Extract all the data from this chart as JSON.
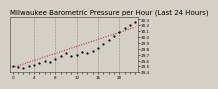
{
  "title": "Barometric Pressure per Hour (Last 24 Hours)",
  "subtitle": "Milwaukee",
  "hours": [
    0,
    1,
    2,
    3,
    4,
    5,
    6,
    7,
    8,
    9,
    10,
    11,
    12,
    13,
    14,
    15,
    16,
    17,
    18,
    19,
    20,
    21,
    22,
    23
  ],
  "pressure": [
    29.51,
    29.49,
    29.47,
    29.5,
    29.53,
    29.56,
    29.6,
    29.58,
    29.62,
    29.68,
    29.72,
    29.67,
    29.7,
    29.74,
    29.72,
    29.76,
    29.82,
    29.88,
    29.95,
    30.02,
    30.08,
    30.15,
    30.21,
    30.26
  ],
  "trend": [
    29.48,
    29.51,
    29.54,
    29.57,
    29.6,
    29.63,
    29.66,
    29.69,
    29.72,
    29.75,
    29.78,
    29.81,
    29.84,
    29.87,
    29.9,
    29.93,
    29.96,
    29.99,
    30.02,
    30.05,
    30.08,
    30.11,
    30.14,
    30.17
  ],
  "ylim_min": 29.4,
  "ylim_max": 30.35,
  "ytick_vals": [
    29.4,
    29.5,
    29.6,
    29.7,
    29.8,
    29.9,
    30.0,
    30.1,
    30.2,
    30.3
  ],
  "ytick_labels": [
    "29.4",
    "29.5",
    "29.6",
    "29.7",
    "29.8",
    "29.9",
    "30.0",
    "30.1",
    "30.2",
    "30.3"
  ],
  "xtick_positions": [
    0,
    4,
    8,
    12,
    16,
    20
  ],
  "xtick_labels": [
    "0",
    "4",
    "8",
    "12",
    "16",
    "20"
  ],
  "vgrid_positions": [
    4,
    8,
    12,
    16,
    20
  ],
  "line_color": "#cc0000",
  "dot_color": "#000000",
  "bg_color": "#d4d0c8",
  "plot_bg": "#d4d0c8",
  "grid_color": "#888888",
  "title_color": "#000000",
  "title_fontsize": 5.0,
  "tick_fontsize": 3.0,
  "dot_size": 1.2,
  "line_width": 0.7
}
